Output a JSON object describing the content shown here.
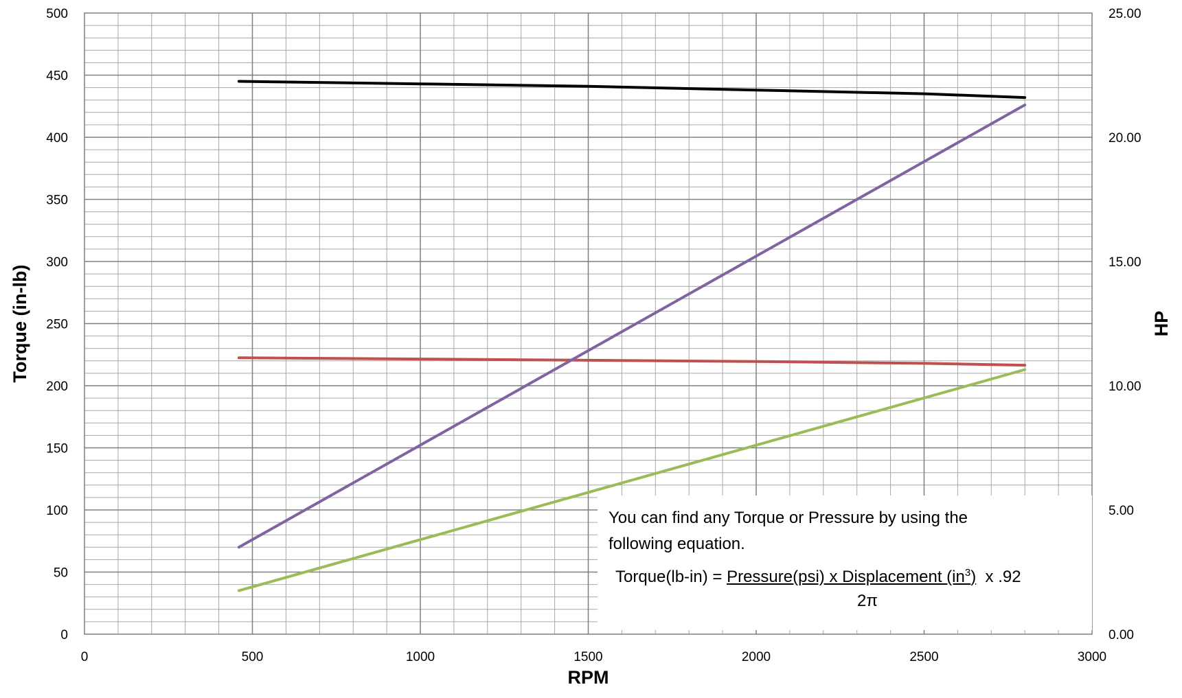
{
  "chart_data": {
    "type": "line",
    "xlabel": "RPM",
    "ylabel": "Torque (in-lb)",
    "y2label": "HP",
    "xlim": [
      0,
      3000
    ],
    "ylim": [
      0,
      500
    ],
    "y2lim": [
      0,
      25
    ],
    "xticks": [
      "0",
      "500",
      "1000",
      "1500",
      "2000",
      "2500",
      "3000"
    ],
    "yticks": [
      "0",
      "50",
      "100",
      "150",
      "200",
      "250",
      "300",
      "350",
      "400",
      "450",
      "500"
    ],
    "y2ticks": [
      "0.00",
      "5.00",
      "10.00",
      "15.00",
      "20.00",
      "25.00"
    ],
    "grid": true,
    "series": [
      {
        "color": "#000000",
        "axis": "left",
        "x": [
          460,
          1000,
          1500,
          2000,
          2500,
          2800
        ],
        "y": [
          445,
          443,
          441,
          438,
          435,
          432
        ]
      },
      {
        "color": "#C0504D",
        "axis": "left",
        "x": [
          460,
          1000,
          1500,
          2000,
          2500,
          2800
        ],
        "y": [
          222.5,
          221.5,
          220.5,
          219.5,
          218,
          216.5
        ]
      },
      {
        "color": "#8064A2",
        "axis": "right",
        "x": [
          460,
          2800
        ],
        "y": [
          3.5,
          21.3
        ]
      },
      {
        "color": "#9BBB59",
        "axis": "right",
        "x": [
          460,
          2800
        ],
        "y": [
          1.75,
          10.65
        ]
      }
    ]
  },
  "note": {
    "text": "You can find any Torque or Pressure by using the following equation.",
    "eq_lhs": "Torque(lb-in) = ",
    "eq_numerator": "Pressure(psi) x Displacement (in",
    "eq_sup": "3",
    "eq_close": ")",
    "eq_factor": "  x .92",
    "eq_denominator": "2π"
  }
}
